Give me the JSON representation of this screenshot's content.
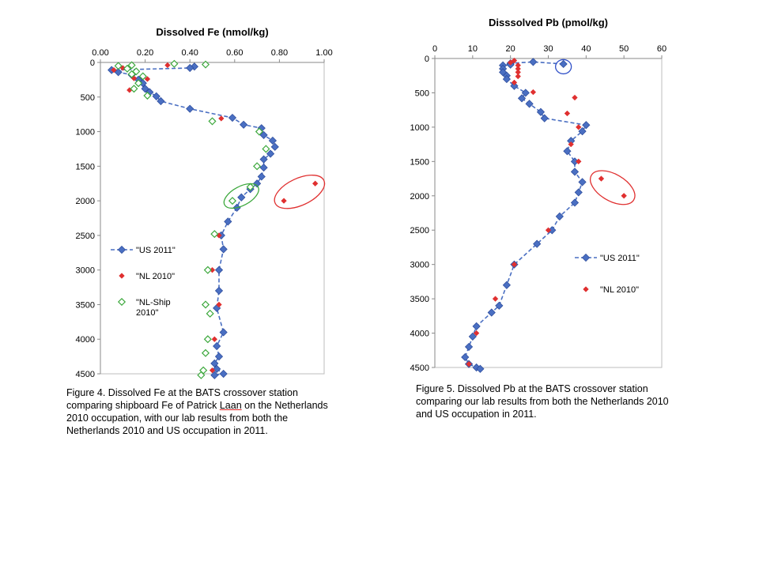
{
  "chart_data": [
    {
      "type": "scatter",
      "title": "Dissolved Fe (nmol/kg)",
      "xlabel": "",
      "ylabel": "",
      "xlim": [
        0.0,
        1.0
      ],
      "ylim": [
        4500,
        0
      ],
      "x_axis_position": "top",
      "y_inverted": true,
      "x_ticks": [
        "0.00",
        "0.20",
        "0.40",
        "0.60",
        "0.80",
        "1.00"
      ],
      "y_ticks": [
        "0",
        "500",
        "1000",
        "1500",
        "2000",
        "2500",
        "3000",
        "3500",
        "4000",
        "4500"
      ],
      "grid": false,
      "legend_placement": "left-middle",
      "series": [
        {
          "name": "\"US 2011\"",
          "marker": "filled-diamond",
          "color": "#4a6fc2",
          "line": "dashed",
          "points": [
            [
              0.42,
              60
            ],
            [
              0.4,
              80
            ],
            [
              0.05,
              110
            ],
            [
              0.08,
              140
            ],
            [
              0.14,
              180
            ],
            [
              0.17,
              250
            ],
            [
              0.19,
              300
            ],
            [
              0.2,
              380
            ],
            [
              0.22,
              430
            ],
            [
              0.25,
              490
            ],
            [
              0.27,
              560
            ],
            [
              0.4,
              670
            ],
            [
              0.59,
              800
            ],
            [
              0.64,
              900
            ],
            [
              0.72,
              950
            ],
            [
              0.73,
              1050
            ],
            [
              0.77,
              1130
            ],
            [
              0.78,
              1220
            ],
            [
              0.76,
              1320
            ],
            [
              0.73,
              1400
            ],
            [
              0.73,
              1520
            ],
            [
              0.72,
              1650
            ],
            [
              0.7,
              1750
            ],
            [
              0.67,
              1830
            ],
            [
              0.63,
              1950
            ],
            [
              0.61,
              2100
            ],
            [
              0.57,
              2300
            ],
            [
              0.54,
              2500
            ],
            [
              0.55,
              2700
            ],
            [
              0.53,
              3000
            ],
            [
              0.53,
              3300
            ],
            [
              0.52,
              3550
            ],
            [
              0.55,
              3900
            ],
            [
              0.52,
              4100
            ],
            [
              0.53,
              4250
            ],
            [
              0.51,
              4350
            ],
            [
              0.52,
              4430
            ],
            [
              0.55,
              4500
            ],
            [
              0.51,
              4520
            ]
          ]
        },
        {
          "name": "\"NL 2010\"",
          "marker": "small-filled-diamond",
          "color": "#e03030",
          "line": "none",
          "points": [
            [
              0.1,
              80
            ],
            [
              0.06,
              110
            ],
            [
              0.3,
              40
            ],
            [
              0.15,
              230
            ],
            [
              0.21,
              240
            ],
            [
              0.13,
              400
            ],
            [
              0.54,
              810
            ],
            [
              0.82,
              2000
            ],
            [
              0.96,
              1750
            ],
            [
              0.53,
              2500
            ],
            [
              0.5,
              3000
            ],
            [
              0.53,
              3500
            ],
            [
              0.51,
              4000
            ],
            [
              0.5,
              4450
            ]
          ]
        },
        {
          "name": "\"NL-Ship 2010\"",
          "marker": "open-diamond",
          "color": "#3ca83c",
          "line": "none",
          "points": [
            [
              0.08,
              50
            ],
            [
              0.14,
              40
            ],
            [
              0.33,
              20
            ],
            [
              0.47,
              30
            ],
            [
              0.12,
              90
            ],
            [
              0.16,
              130
            ],
            [
              0.14,
              170
            ],
            [
              0.19,
              200
            ],
            [
              0.17,
              300
            ],
            [
              0.15,
              380
            ],
            [
              0.21,
              480
            ],
            [
              0.5,
              850
            ],
            [
              0.71,
              1000
            ],
            [
              0.74,
              1250
            ],
            [
              0.7,
              1500
            ],
            [
              0.67,
              1800
            ],
            [
              0.59,
              2000
            ],
            [
              0.51,
              2480
            ],
            [
              0.48,
              3000
            ],
            [
              0.47,
              3500
            ],
            [
              0.49,
              3630
            ],
            [
              0.48,
              4000
            ],
            [
              0.47,
              4200
            ],
            [
              0.46,
              4450
            ],
            [
              0.45,
              4520
            ]
          ]
        }
      ],
      "annotations": [
        {
          "shape": "ellipse",
          "color": "#3ca83c",
          "cx": 0.63,
          "cy": 1930,
          "note": "highlights NL-Ship outliers"
        },
        {
          "shape": "ellipse",
          "color": "#e03030",
          "cx": 0.89,
          "cy": 1870,
          "note": "highlights NL 2010 outliers"
        }
      ]
    },
    {
      "type": "scatter",
      "title": "Disssolved Pb (pmol/kg)",
      "xlabel": "",
      "ylabel": "",
      "xlim": [
        0,
        60
      ],
      "ylim": [
        4500,
        0
      ],
      "x_axis_position": "top",
      "y_inverted": true,
      "x_ticks": [
        "0",
        "10",
        "20",
        "30",
        "40",
        "50",
        "60"
      ],
      "y_ticks": [
        "0",
        "500",
        "1000",
        "1500",
        "2000",
        "2500",
        "3000",
        "3500",
        "4000",
        "4500"
      ],
      "grid": false,
      "legend_placement": "right-middle",
      "series": [
        {
          "name": "\"US 2011\"",
          "marker": "filled-diamond",
          "color": "#4a6fc2",
          "line": "dashed",
          "points": [
            [
              34,
              80
            ],
            [
              26,
              50
            ],
            [
              20,
              70
            ],
            [
              20,
              90
            ],
            [
              18,
              100
            ],
            [
              18,
              150
            ],
            [
              18,
              200
            ],
            [
              19,
              250
            ],
            [
              19,
              300
            ],
            [
              21,
              400
            ],
            [
              24,
              500
            ],
            [
              23,
              580
            ],
            [
              25,
              660
            ],
            [
              28,
              780
            ],
            [
              29,
              870
            ],
            [
              40,
              970
            ],
            [
              39,
              1060
            ],
            [
              36,
              1200
            ],
            [
              35,
              1350
            ],
            [
              37,
              1500
            ],
            [
              37,
              1650
            ],
            [
              39,
              1800
            ],
            [
              38,
              1950
            ],
            [
              37,
              2100
            ],
            [
              33,
              2300
            ],
            [
              31,
              2500
            ],
            [
              27,
              2700
            ],
            [
              21,
              3000
            ],
            [
              19,
              3300
            ],
            [
              17,
              3600
            ],
            [
              15,
              3700
            ],
            [
              11,
              3900
            ],
            [
              10,
              4050
            ],
            [
              9,
              4200
            ],
            [
              8,
              4350
            ],
            [
              9,
              4450
            ],
            [
              11,
              4500
            ],
            [
              12,
              4520
            ]
          ]
        },
        {
          "name": "\"NL 2010\"",
          "marker": "small-filled-diamond",
          "color": "#e03030",
          "line": "none",
          "points": [
            [
              21,
              30
            ],
            [
              20,
              60
            ],
            [
              22,
              100
            ],
            [
              22,
              150
            ],
            [
              22,
              200
            ],
            [
              22,
              260
            ],
            [
              21,
              350
            ],
            [
              26,
              490
            ],
            [
              37,
              570
            ],
            [
              35,
              800
            ],
            [
              38,
              1000
            ],
            [
              36,
              1250
            ],
            [
              38,
              1500
            ],
            [
              44,
              1750
            ],
            [
              50,
              2000
            ],
            [
              30,
              2500
            ],
            [
              21,
              3000
            ],
            [
              16,
              3500
            ],
            [
              11,
              4000
            ],
            [
              9,
              4450
            ]
          ]
        }
      ],
      "annotations": [
        {
          "shape": "ellipse",
          "color": "#3050c8",
          "cx": 34,
          "cy": 120,
          "note": "circles US 2011 surface point"
        },
        {
          "shape": "ellipse",
          "color": "#e03030",
          "cx": 47,
          "cy": 1880,
          "note": "highlights NL 2010 outliers"
        }
      ]
    }
  ],
  "captions": {
    "fe_pre": "Figure 4. Dissolved Fe at the BATS crossover station comparing shipboard Fe of Patrick ",
    "fe_ul": "Laan",
    "fe_post": " on the Netherlands 2010 occupation, with our lab results from both the Netherlands 2010 and US occupation in 2011.",
    "pb": "Figure 5. Dissolved Pb at the BATS crossover station comparing our lab results from both the Netherlands 2010 and US occupation in 2011."
  },
  "legend_fe": {
    "us": "\"US 2011\"",
    "nl": "\"NL 2010\"",
    "ship_line1": "\"NL-Ship",
    "ship_line2": "2010\""
  },
  "legend_pb": {
    "us": "\"US 2011\"",
    "nl": "\"NL 2010\""
  }
}
